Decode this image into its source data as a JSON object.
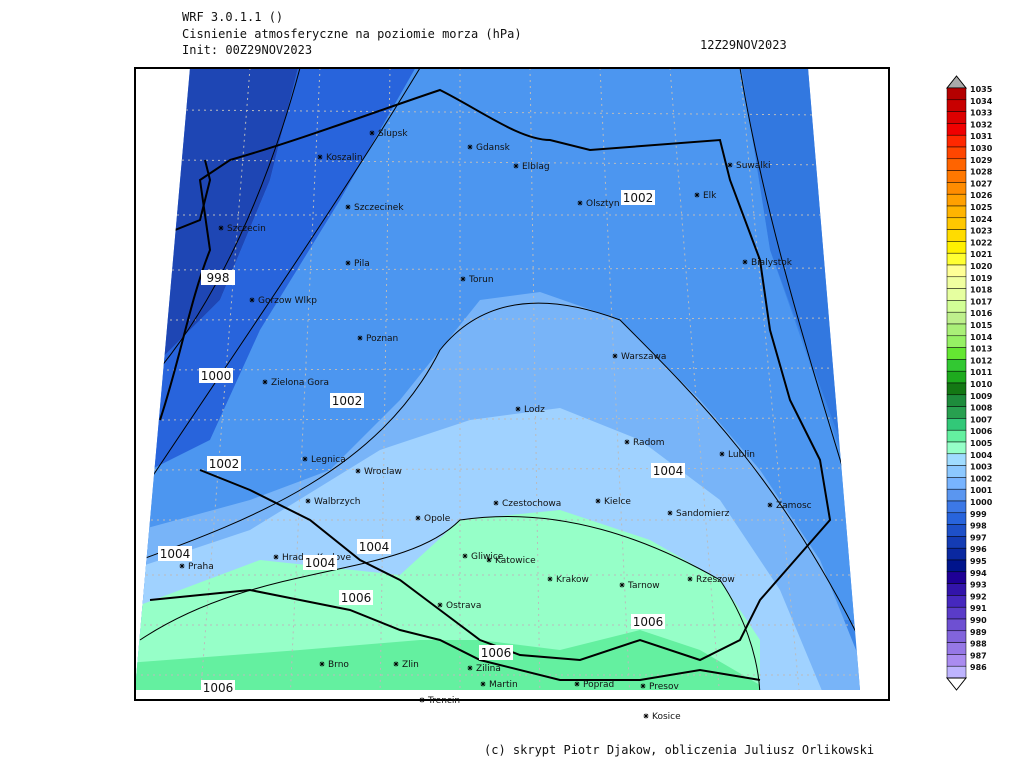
{
  "header": {
    "model": "WRF 3.0.1.1 ()",
    "title": "Cisnienie atmosferyczne na poziomie morza (hPa)",
    "init": "Init: 00Z29NOV2023",
    "valid": "12Z29NOV2023"
  },
  "cities": [
    "Slupsk",
    "Koszalin",
    "Gdansk",
    "Elblag",
    "Suwalki",
    "Elk",
    "Olsztyn",
    "Szczecinek",
    "Szczecin",
    "Bialystok",
    "Pila",
    "Torun",
    "Gorzow Wlkp",
    "Poznan",
    "Warszawa",
    "Zielona Gora",
    "Lodz",
    "Radom",
    "Lublin",
    "Legnica",
    "Wroclaw",
    "Kielce",
    "Walbrzych",
    "Czestochowa",
    "Zamosc",
    "Opole",
    "Sandomierz",
    "Hradec Kralove",
    "Gliwice",
    "Katowice",
    "Praha",
    "Krakow",
    "Tarnow",
    "Rzeszow",
    "Ostrava",
    "Brno",
    "Zlin",
    "Zilina",
    "Martin",
    "Poprad",
    "Presov",
    "Trencin",
    "Kosice"
  ],
  "isobar_labels": [
    1002,
    998,
    1000,
    1002,
    1002,
    1004,
    1004,
    1004,
    1004,
    1006,
    1006,
    1006,
    1006
  ],
  "colorbar": {
    "levels": [
      1035,
      1034,
      1033,
      1032,
      1031,
      1030,
      1029,
      1028,
      1027,
      1026,
      1025,
      1024,
      1023,
      1022,
      1021,
      1020,
      1019,
      1018,
      1017,
      1016,
      1015,
      1014,
      1013,
      1012,
      1011,
      1010,
      1009,
      1008,
      1007,
      1006,
      1005,
      1004,
      1003,
      1002,
      1001,
      1000,
      999,
      998,
      997,
      996,
      995,
      994,
      993,
      992,
      991,
      990,
      989,
      988,
      987,
      986
    ],
    "colors": [
      "#b40000",
      "#c80000",
      "#dc0000",
      "#f00000",
      "#ff2800",
      "#ff4600",
      "#ff6400",
      "#ff7800",
      "#ff8c00",
      "#ffa000",
      "#ffb400",
      "#ffc800",
      "#ffdc00",
      "#fff000",
      "#ffff32",
      "#ffff96",
      "#f0ffa0",
      "#e6ffa0",
      "#d2ff96",
      "#bef08c",
      "#aaf078",
      "#96f064",
      "#64e632",
      "#32c832",
      "#1eaa1e",
      "#147814",
      "#1e8c3c",
      "#28a050",
      "#32c878",
      "#64f0a0",
      "#96ffc8",
      "#a0dcff",
      "#8cc8ff",
      "#78b4ff",
      "#5a96f0",
      "#3c78e6",
      "#2864dc",
      "#1e50c8",
      "#143cb4",
      "#0a28a0",
      "#00148c",
      "#1e0096",
      "#3214aa",
      "#4628be",
      "#5a3cc8",
      "#6e50d2",
      "#8264dc",
      "#9678e6",
      "#aa8cf0",
      "#beb4ff"
    ]
  },
  "footer": "(c) skrypt Piotr Djakow, obliczenia Juliusz Orlikowski"
}
